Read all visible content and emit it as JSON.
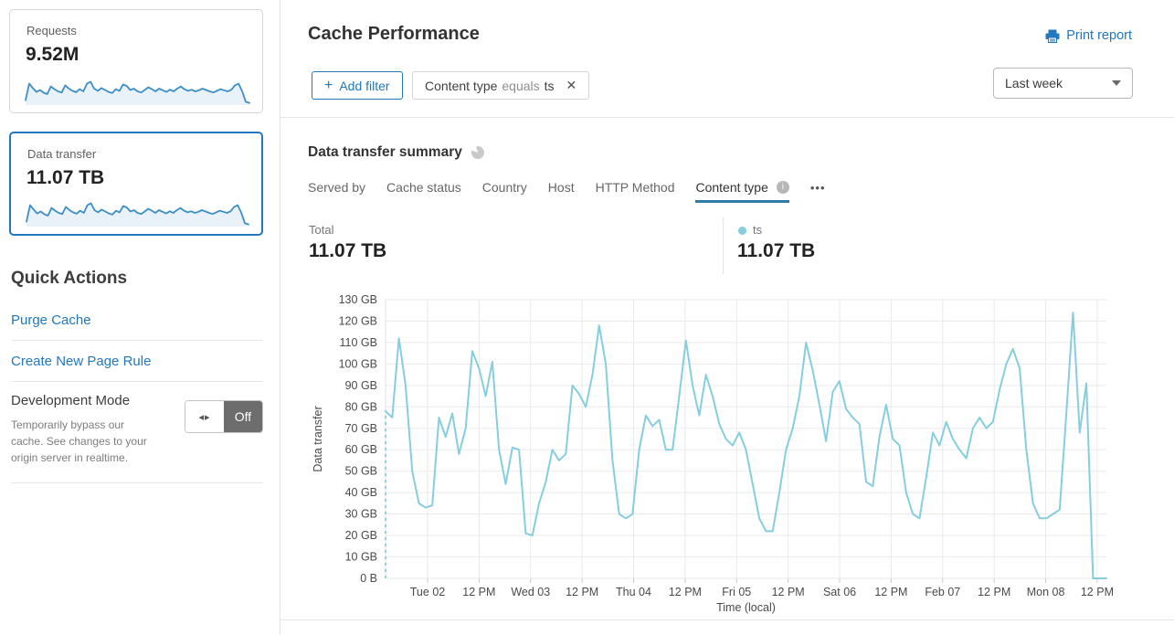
{
  "colors": {
    "accent_blue": "#2277bd",
    "tab_underline": "#2e7ca8",
    "chart_line": "#86cede",
    "sparkline_line": "#3e8ec6",
    "sparkline_fill": "#eaf2f9",
    "toggle_off_bg": "#6d6d6d"
  },
  "icons": {
    "plus": "+",
    "close": "✕",
    "info": "i",
    "ellipsis": "•••",
    "toggle_arrows": "◂▸"
  },
  "sidebar": {
    "cards": [
      {
        "label": "Requests",
        "value": "9.52M"
      },
      {
        "label": "Data transfer",
        "value": "11.07 TB",
        "selected": true
      }
    ],
    "sparkline_values": [
      18,
      78,
      62,
      48,
      55,
      45,
      40,
      68,
      58,
      50,
      46,
      72,
      60,
      52,
      47,
      58,
      50,
      78,
      85,
      60,
      52,
      62,
      55,
      48,
      44,
      58,
      52,
      75,
      70,
      55,
      60,
      50,
      46,
      55,
      65,
      58,
      50,
      60,
      54,
      48,
      56,
      50,
      60,
      68,
      58,
      52,
      56,
      50,
      54,
      60,
      55,
      50,
      46,
      52,
      58,
      54,
      50,
      56,
      72,
      78,
      50,
      12,
      8
    ],
    "quick_actions": {
      "title": "Quick Actions",
      "links": [
        "Purge Cache",
        "Create New Page Rule"
      ],
      "dev_mode": {
        "title": "Development Mode",
        "description": "Temporarily bypass our cache. See changes to your origin server in realtime.",
        "toggle_state": "Off"
      }
    }
  },
  "header": {
    "title": "Cache Performance",
    "print_label": "Print report"
  },
  "filters": {
    "add_filter_label": "Add filter",
    "chip": {
      "field": "Content type",
      "operator": "equals",
      "value": "ts"
    },
    "time_range": "Last week"
  },
  "summary": {
    "title": "Data transfer summary",
    "tabs": [
      "Served by",
      "Cache status",
      "Country",
      "Host",
      "HTTP Method",
      "Content type"
    ],
    "active_tab": "Content type",
    "total_label": "Total",
    "total_value": "11.07 TB",
    "legend": {
      "name": "ts",
      "value": "11.07 TB"
    }
  },
  "chart_data": {
    "type": "line",
    "title": "Data transfer summary",
    "xlabel": "Time (local)",
    "ylabel": "Data transfer",
    "unit": "GB",
    "ylim": [
      0,
      130
    ],
    "grid": true,
    "legend_position": "top-right",
    "y_ticks": [
      "0 B",
      "10 GB",
      "20 GB",
      "30 GB",
      "40 GB",
      "50 GB",
      "60 GB",
      "70 GB",
      "80 GB",
      "90 GB",
      "100 GB",
      "110 GB",
      "120 GB",
      "130 GB"
    ],
    "x_ticks": [
      "Tue 02",
      "12 PM",
      "Wed 03",
      "12 PM",
      "Thu 04",
      "12 PM",
      "Fri 05",
      "12 PM",
      "Sat 06",
      "12 PM",
      "Feb 07",
      "12 PM",
      "Mon 08",
      "12 PM"
    ],
    "start_dashed": true,
    "series": [
      {
        "name": "ts",
        "color": "#86cede",
        "values": [
          78,
          75,
          112,
          90,
          50,
          35,
          33,
          34,
          75,
          66,
          77,
          58,
          70,
          106,
          98,
          85,
          101,
          60,
          44,
          61,
          60,
          21,
          20,
          35,
          45,
          60,
          55,
          58,
          90,
          86,
          80,
          95,
          118,
          100,
          55,
          30,
          28,
          30,
          60,
          76,
          71,
          74,
          60,
          60,
          85,
          111,
          90,
          76,
          95,
          85,
          72,
          65,
          62,
          68,
          60,
          44,
          28,
          22,
          22,
          40,
          60,
          70,
          85,
          110,
          97,
          81,
          64,
          87,
          92,
          79,
          75,
          72,
          45,
          43,
          66,
          81,
          65,
          62,
          40,
          30,
          28,
          47,
          68,
          62,
          73,
          65,
          60,
          56,
          70,
          75,
          70,
          73,
          88,
          100,
          107,
          98,
          60,
          35,
          28,
          28,
          30,
          32,
          77,
          124,
          68,
          91,
          0,
          0,
          0
        ]
      }
    ]
  }
}
